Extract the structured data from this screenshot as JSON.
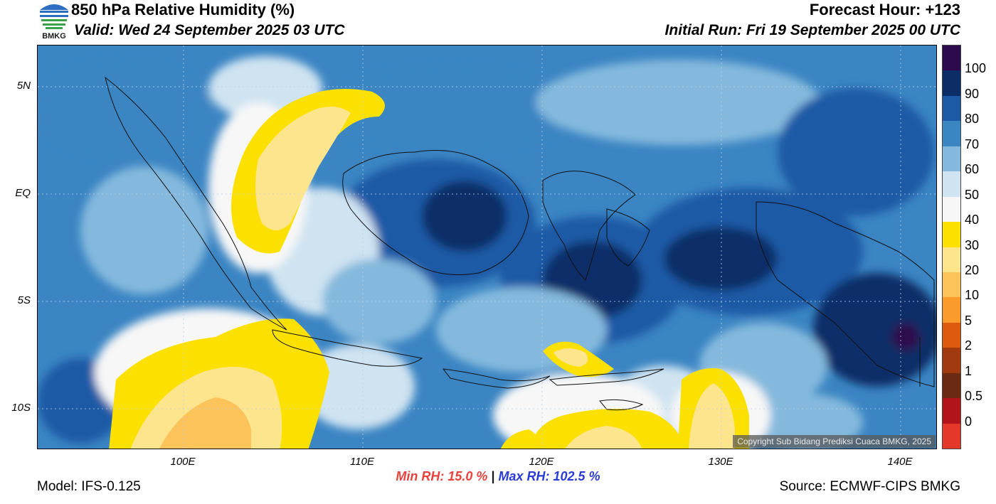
{
  "header": {
    "title": "850 hPa Relative Humidity (%)",
    "valid": "Valid: Wed 24 September 2025 03 UTC",
    "forecast_hour": "Forecast Hour: +123",
    "initial_run": "Initial Run: Fri 19 September 2025 00 UTC"
  },
  "logo": {
    "text": "BMKG",
    "icon": "bmkg-logo-icon"
  },
  "map": {
    "copyright": "Copyright Sub Bidang Prediksi Cuaca BMKG, 2025",
    "y_ticks": [
      "5N",
      "EQ",
      "5S",
      "10S"
    ],
    "x_ticks": [
      "100E",
      "110E",
      "120E",
      "130E",
      "140E"
    ]
  },
  "colorbar": {
    "labels": [
      "100",
      "90",
      "80",
      "70",
      "60",
      "50",
      "40",
      "30",
      "20",
      "10",
      "5",
      "2",
      "1",
      "0.5",
      "0"
    ],
    "colors": [
      "#2d0a4e",
      "#0c2d67",
      "#1d5aa6",
      "#3b85c3",
      "#84b9dd",
      "#cfe3f1",
      "#f7f7f7",
      "#fbe000",
      "#fde58e",
      "#fcc35a",
      "#fb9b2c",
      "#de5a0e",
      "#a23a0f",
      "#6b2a13",
      "#b3141b",
      "#e4392a"
    ]
  },
  "stats": {
    "min_rh": "Min RH:  15.0 %",
    "max_rh": "Max RH: 102.5 %",
    "separator": "|"
  },
  "footer": {
    "model": "Model: IFS-0.125",
    "source": "Source: ECMWF-CIPS BMKG"
  }
}
